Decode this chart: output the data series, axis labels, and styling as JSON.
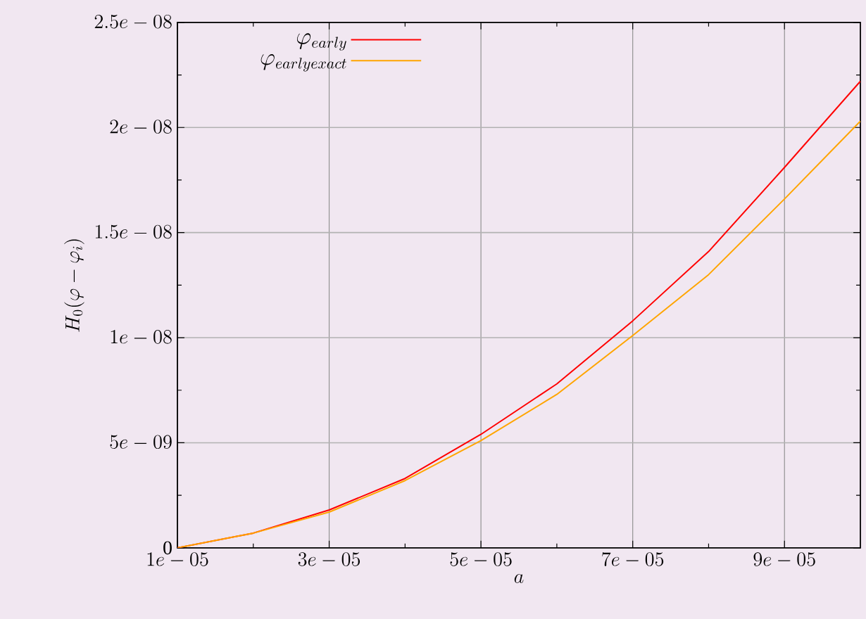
{
  "chart_data": {
    "type": "line",
    "xlabel": "a",
    "ylabel": "H_0(\\varphi-\\varphi_i)",
    "x": [
      1e-05,
      2e-05,
      3e-05,
      4e-05,
      5e-05,
      6e-05,
      7e-05,
      8e-05,
      9e-05,
      0.0001
    ],
    "series": [
      {
        "name": "\\varphi_{early}",
        "color": "#ff0000",
        "values": [
          0,
          7e-10,
          1.8e-09,
          3.3e-09,
          5.4e-09,
          7.8e-09,
          1.08e-08,
          1.41e-08,
          1.81e-08,
          2.22e-08
        ]
      },
      {
        "name": "\\varphi_{earlyexact}",
        "color": "#ffa500",
        "values": [
          0,
          7e-10,
          1.7e-09,
          3.2e-09,
          5.1e-09,
          7.3e-09,
          1.01e-08,
          1.3e-08,
          1.66e-08,
          2.03e-08
        ]
      }
    ],
    "xlim": [
      1e-05,
      0.0001
    ],
    "xticks": [
      {
        "value": 1e-05,
        "label": "1e-05"
      },
      {
        "value": 3e-05,
        "label": "3e-05"
      },
      {
        "value": 5e-05,
        "label": "5e-05"
      },
      {
        "value": 7e-05,
        "label": "7e-05"
      },
      {
        "value": 9e-05,
        "label": "9e-05"
      }
    ],
    "ylim": [
      0,
      2.5e-08
    ],
    "yticks": [
      0,
      {
        "value": 5e-09,
        "label": "5e-09"
      },
      {
        "value": 1e-08,
        "label": "1e-08"
      },
      {
        "value": 1.5e-08,
        "label": "1.5e-08"
      },
      {
        "value": 2e-08,
        "label": "2e-08"
      },
      {
        "value": 2.5e-08,
        "label": "2.5e-08"
      }
    ],
    "grid": true,
    "legend": "top left",
    "marker": "none",
    "line_style": "solid"
  }
}
